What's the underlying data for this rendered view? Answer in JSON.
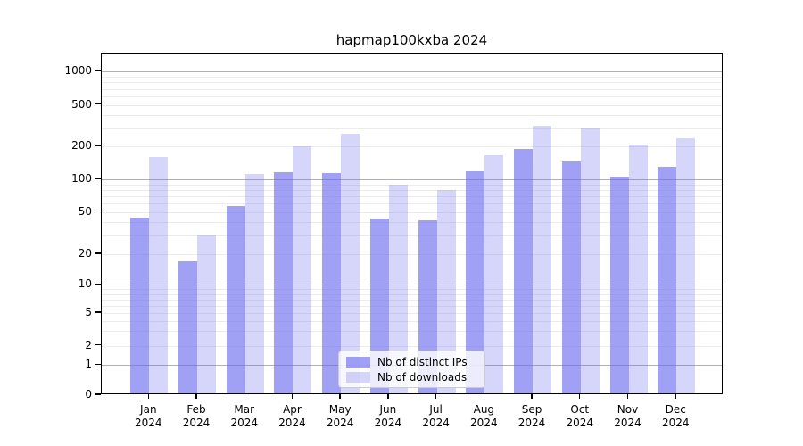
{
  "chart_data": {
    "type": "bar",
    "title": "hapmap100kxba 2024",
    "categories": [
      "Jan",
      "Feb",
      "Mar",
      "Apr",
      "May",
      "Jun",
      "Jul",
      "Aug",
      "Sep",
      "Oct",
      "Nov",
      "Dec"
    ],
    "category_year": "2024",
    "series": [
      {
        "name": "Nb of distinct IPs",
        "color": "rgba(102,102,238,0.62)",
        "values": [
          44,
          17,
          57,
          116,
          115,
          43,
          42,
          120,
          190,
          145,
          107,
          130
        ]
      },
      {
        "name": "Nb of downloads",
        "color": "rgba(102,102,238,0.27)",
        "values": [
          161,
          30,
          113,
          203,
          266,
          90,
          80,
          168,
          315,
          297,
          209,
          241
        ]
      }
    ],
    "xlabel": "",
    "ylabel": "",
    "y_ticks": [
      1000,
      500,
      200,
      100,
      50,
      20,
      10,
      5,
      2,
      1,
      0
    ],
    "y_major_gridlines": [
      1,
      10,
      100,
      1000
    ],
    "yscale": "log (linear segment between 0 and 1)",
    "ylim": [
      0,
      1450
    ],
    "grid": true,
    "legend_position": "lower center",
    "accent_color": "#6666ee"
  }
}
